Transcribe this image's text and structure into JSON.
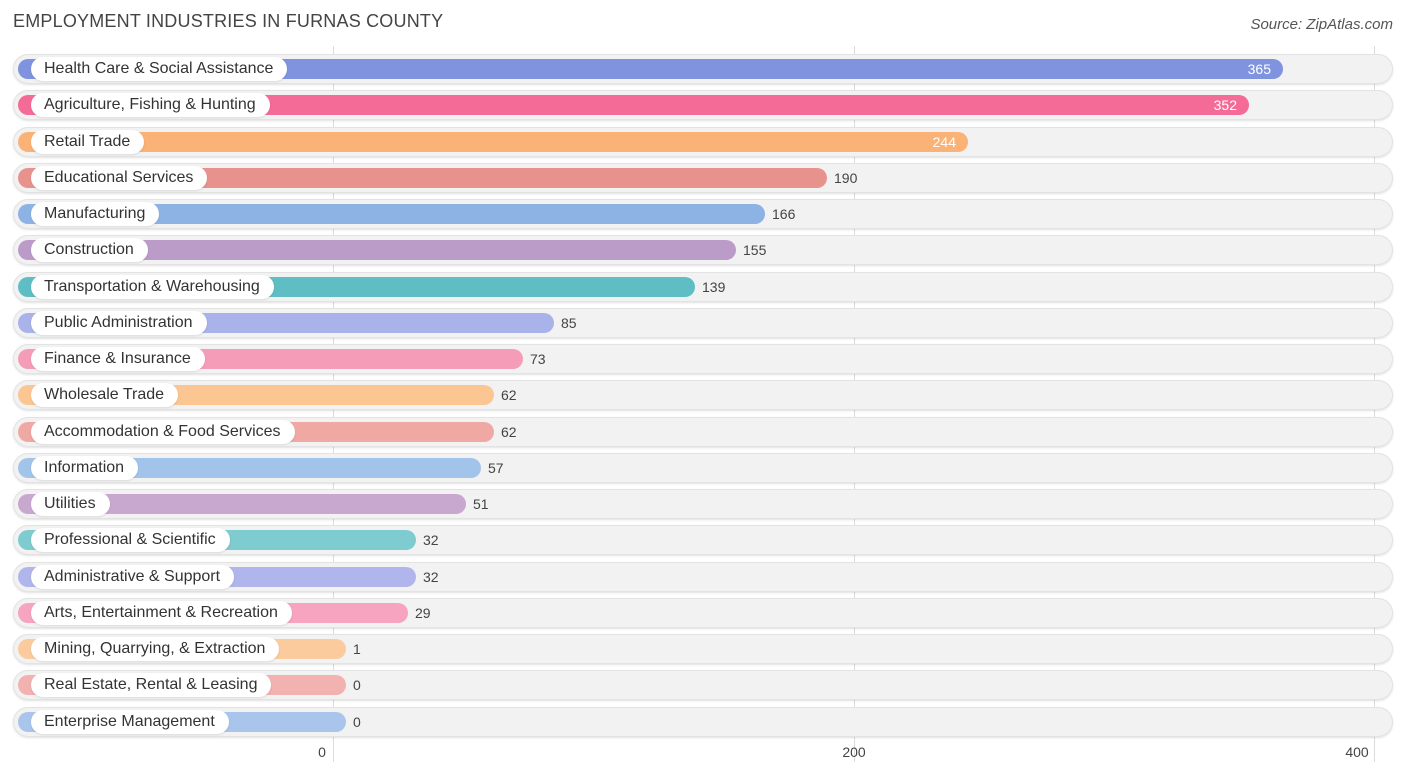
{
  "chart_data": {
    "type": "bar",
    "orientation": "horizontal",
    "title": "EMPLOYMENT INDUSTRIES IN FURNAS COUNTY",
    "source": "Source: ZipAtlas.com",
    "xlim": [
      0,
      400
    ],
    "xticks": [
      0,
      200,
      400
    ],
    "categories": [
      "Health Care & Social Assistance",
      "Agriculture, Fishing & Hunting",
      "Retail Trade",
      "Educational Services",
      "Manufacturing",
      "Construction",
      "Transportation & Warehousing",
      "Public Administration",
      "Finance & Insurance",
      "Wholesale Trade",
      "Accommodation & Food Services",
      "Information",
      "Utilities",
      "Professional & Scientific",
      "Administrative & Support",
      "Arts, Entertainment & Recreation",
      "Mining, Quarrying, & Extraction",
      "Real Estate, Rental & Leasing",
      "Enterprise Management"
    ],
    "values": [
      365,
      352,
      244,
      190,
      166,
      155,
      139,
      85,
      73,
      62,
      62,
      57,
      51,
      32,
      32,
      29,
      1,
      0,
      0
    ],
    "colors": [
      "#7f93de",
      "#f56b97",
      "#fbb276",
      "#e8928d",
      "#8db3e5",
      "#bb9cc9",
      "#5fbec4",
      "#a9b3ea",
      "#f59db8",
      "#fbc691",
      "#f0a8a5",
      "#a2c3ea",
      "#c9a8cf",
      "#7ecbd0",
      "#b0b6ec",
      "#f6a4bf",
      "#fbcb9e",
      "#f1b2b0",
      "#a9c5ec"
    ]
  }
}
